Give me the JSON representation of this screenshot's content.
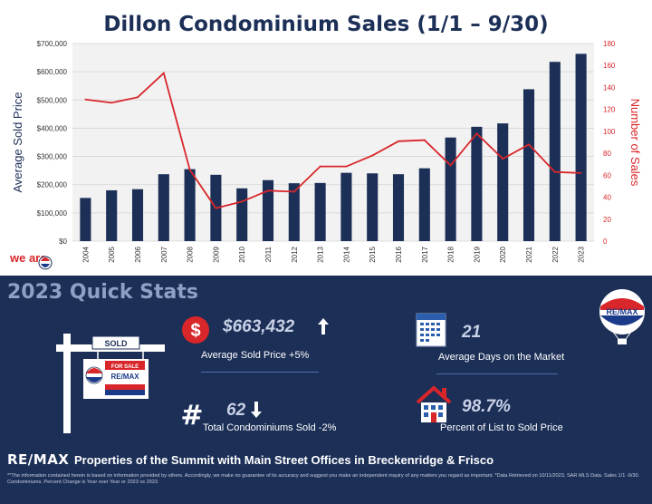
{
  "page": {
    "title": "Dillon Condominium Sales (1/1 – 9/30)",
    "weare_logo_text": "we are"
  },
  "colors": {
    "navy": "#1c2f57",
    "bar": "#1c2f57",
    "line": "#d9262a",
    "axis_right": "#d9262a",
    "plot_bg": "#f2f2f2"
  },
  "chart_data": {
    "type": "bar",
    "categories": [
      "2004",
      "2005",
      "2006",
      "2007",
      "2008",
      "2009",
      "2010",
      "2011",
      "2012",
      "2013",
      "2014",
      "2015",
      "2016",
      "2017",
      "2018",
      "2019",
      "2020",
      "2021",
      "2022",
      "2023"
    ],
    "series": [
      {
        "name": "Average Sold Price",
        "type": "bar",
        "axis": "left",
        "values": [
          153000,
          180000,
          184000,
          237000,
          255000,
          235000,
          187000,
          216000,
          205000,
          206000,
          242000,
          240000,
          237000,
          258000,
          367000,
          405000,
          417000,
          538000,
          635000,
          663432
        ]
      },
      {
        "name": "Number of Sales",
        "type": "line",
        "axis": "right",
        "values": [
          129,
          126,
          131,
          153,
          65,
          30,
          36,
          46,
          45,
          68,
          68,
          78,
          91,
          92,
          69,
          98,
          75,
          88,
          63,
          62
        ]
      }
    ],
    "ylabel": "Average Sold Price",
    "y2label": "Number of Sales",
    "ylim": [
      0,
      700000
    ],
    "y2lim": [
      0,
      180
    ],
    "yticks": [
      "$0",
      "$100,000",
      "$200,000",
      "$300,000",
      "$400,000",
      "$500,000",
      "$600,000",
      "$700,000"
    ],
    "y2ticks": [
      "0",
      "20",
      "40",
      "60",
      "80",
      "100",
      "120",
      "140",
      "160",
      "180"
    ]
  },
  "stats": {
    "section_title": "2023 Quick Stats",
    "sign_sold": "SOLD",
    "sign_for_sale": "FOR SALE",
    "sign_brand": "RE/MAX",
    "balloon_text": "RE/MAX",
    "avg_price_value": "$663,432",
    "avg_price_label": "Average Sold Price +5%",
    "dollar_icon": "$",
    "days_value": "21",
    "days_label": "Average Days on the Market",
    "sold_value": "62",
    "sold_label": "Total Condominiums Sold -2%",
    "hash_icon": "#",
    "list_value": "98.7%",
    "list_label": "Percent of List to Sold Price"
  },
  "footer": {
    "brand": "RE/MAX",
    "text": "Properties of the Summit with Main Street Offices in Breckenridge & Frisco",
    "disclaimer": "**The information contained herein is based on information provided by others. Accordingly, we make no guarantee of its accuracy and suggest you make an independent inquiry of any matters you regard as important. *Data Retrieved on 10/11/2023, SAR MLS Data. Sales 1/1 -9/30. Condominiums. Percent Change is Year over Year or 2023 vs 2022."
  }
}
